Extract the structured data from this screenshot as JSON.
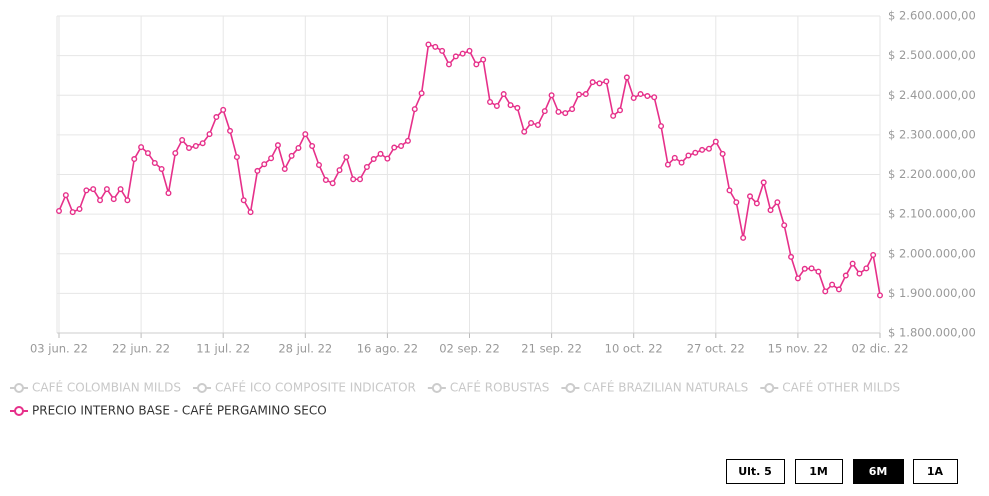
{
  "chart_data": {
    "type": "line",
    "categories": [
      "03 jun. 22",
      null,
      null,
      null,
      null,
      null,
      null,
      null,
      null,
      null,
      null,
      null,
      "22 jun. 22",
      null,
      null,
      null,
      null,
      null,
      null,
      null,
      null,
      null,
      null,
      null,
      "11 jul. 22",
      null,
      null,
      null,
      null,
      null,
      null,
      null,
      null,
      null,
      null,
      null,
      "28 jul. 22",
      null,
      null,
      null,
      null,
      null,
      null,
      null,
      null,
      null,
      null,
      null,
      "16 ago. 22",
      null,
      null,
      null,
      null,
      null,
      null,
      null,
      null,
      null,
      null,
      null,
      "02 sep. 22",
      null,
      null,
      null,
      null,
      null,
      null,
      null,
      null,
      null,
      null,
      null,
      "21 sep. 22",
      null,
      null,
      null,
      null,
      null,
      null,
      null,
      null,
      null,
      null,
      null,
      "10 oct. 22",
      null,
      null,
      null,
      null,
      null,
      null,
      null,
      null,
      null,
      null,
      null,
      "27 oct. 22",
      null,
      null,
      null,
      null,
      null,
      null,
      null,
      null,
      null,
      null,
      null,
      "15 nov. 22",
      null,
      null,
      null,
      null,
      null,
      null,
      null,
      null,
      null,
      null,
      null,
      "02 dic. 22"
    ],
    "series": [
      {
        "name": "CAFÉ COLOMBIAN MILDS",
        "color": "#cccccc",
        "visible": false
      },
      {
        "name": "CAFÉ ICO COMPOSITE INDICATOR",
        "color": "#cccccc",
        "visible": false
      },
      {
        "name": "CAFÉ ROBUSTAS",
        "color": "#cccccc",
        "visible": false
      },
      {
        "name": "CAFÉ BRAZILIAN NATURALS",
        "color": "#cccccc",
        "visible": false
      },
      {
        "name": "CAFÉ OTHER MILDS",
        "color": "#cccccc",
        "visible": false
      },
      {
        "name": "PRECIO INTERNO BASE - CAFÉ PERGAMINO SECO",
        "color": "#e6308a",
        "visible": true,
        "values": [
          2108000,
          2148000,
          2105000,
          2113000,
          2160000,
          2163000,
          2135000,
          2163000,
          2138000,
          2163000,
          2135000,
          2239000,
          2269000,
          2254000,
          2229000,
          2214000,
          2153000,
          2254000,
          2287000,
          2267000,
          2272000,
          2279000,
          2302000,
          2345000,
          2363000,
          2310000,
          2244000,
          2135000,
          2105000,
          2209000,
          2226000,
          2241000,
          2274000,
          2214000,
          2247000,
          2267000,
          2302000,
          2272000,
          2224000,
          2186000,
          2178000,
          2211000,
          2244000,
          2188000,
          2188000,
          2219000,
          2239000,
          2252000,
          2240000,
          2268000,
          2272000,
          2285000,
          2365000,
          2405000,
          2528000,
          2522000,
          2512000,
          2478000,
          2498000,
          2505000,
          2512000,
          2478000,
          2490000,
          2383000,
          2373000,
          2403000,
          2375000,
          2368000,
          2308000,
          2330000,
          2325000,
          2360000,
          2400000,
          2358000,
          2355000,
          2365000,
          2402000,
          2403000,
          2433000,
          2430000,
          2435000,
          2348000,
          2362000,
          2445000,
          2393000,
          2403000,
          2398000,
          2395000,
          2322000,
          2225000,
          2242000,
          2230000,
          2248000,
          2255000,
          2262000,
          2265000,
          2283000,
          2252000,
          2160000,
          2130000,
          2040000,
          2145000,
          2127000,
          2180000,
          2110000,
          2130000,
          2072000,
          1992000,
          1938000,
          1962000,
          1963000,
          1955000,
          1905000,
          1922000,
          1910000,
          1945000,
          1975000,
          1950000,
          1963000,
          1997000,
          1895000
        ]
      }
    ],
    "ylim": [
      1800000,
      2600000
    ],
    "yticks": [
      {
        "value": 1800000,
        "label": "$ 1.800.000,00"
      },
      {
        "value": 1900000,
        "label": "$ 1.900.000,00"
      },
      {
        "value": 2000000,
        "label": "$ 2.000.000,00"
      },
      {
        "value": 2100000,
        "label": "$ 2.100.000,00"
      },
      {
        "value": 2200000,
        "label": "$ 2.200.000,00"
      },
      {
        "value": 2300000,
        "label": "$ 2.300.000,00"
      },
      {
        "value": 2400000,
        "label": "$ 2.400.000,00"
      },
      {
        "value": 2500000,
        "label": "$ 2.500.000,00"
      },
      {
        "value": 2600000,
        "label": "$ 2.600.000,00"
      }
    ],
    "y_axis_side": "right",
    "grid": true
  },
  "range_buttons": {
    "options": [
      "Ult. 5",
      "1M",
      "6M",
      "1A"
    ],
    "selected": 2
  }
}
